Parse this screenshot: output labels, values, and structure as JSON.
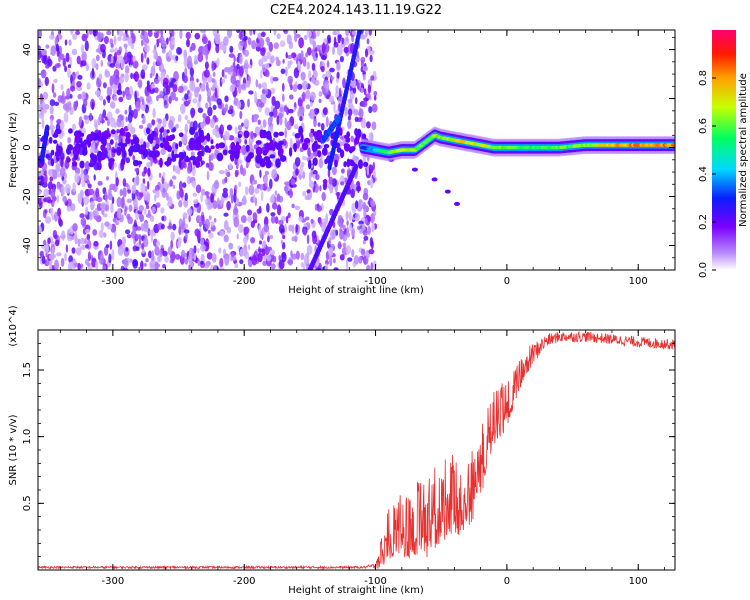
{
  "title": "C2E4.2024.143.11.19.G22",
  "chart_data": [
    {
      "type": "heatmap",
      "description_role": "spectrogram",
      "xlabel": "Height of straight line (km)",
      "ylabel": "Frequency (Hz)",
      "xlim": [
        -357,
        128
      ],
      "ylim": [
        -50,
        48
      ],
      "xticks": [
        -300,
        -200,
        -100,
        0,
        100
      ],
      "xtick_labels": [
        "-300",
        "-200",
        "-100",
        "0",
        "100"
      ],
      "yticks": [
        -40,
        -20,
        0,
        20,
        40
      ],
      "ytick_labels": [
        "-40",
        "-20",
        "0",
        "20",
        "40"
      ],
      "colorbar": {
        "label": "Normalized spectral amplitude",
        "range": [
          0,
          1
        ],
        "ticks": [
          0.0,
          0.2,
          0.4,
          0.6,
          0.8
        ],
        "tick_labels": [
          "0.0",
          "0.2",
          "0.4",
          "0.6",
          "0.8"
        ]
      },
      "noise_region": {
        "x_from": -357,
        "x_to": -100,
        "y_from": -50,
        "y_to": 48,
        "amplitude": 0.15
      },
      "streaks": [
        {
          "x_from": -135,
          "x_to": -112,
          "y_from": -8,
          "y_to": 48,
          "amplitude": 0.25
        },
        {
          "x_from": -150,
          "x_to": -115,
          "y_from": -50,
          "y_to": -8,
          "amplitude": 0.2
        },
        {
          "x_from": -140,
          "x_to": -128,
          "y_from": 3,
          "y_to": 12,
          "amplitude": 0.3
        },
        {
          "x_from": -354,
          "x_to": -350,
          "y_from": -5,
          "y_to": 8,
          "amplitude": 0.25
        }
      ],
      "signal_trace": {
        "x": [
          -110,
          -100,
          -90,
          -80,
          -70,
          -60,
          -55,
          -50,
          -40,
          -30,
          -20,
          -10,
          0,
          20,
          40,
          60,
          80,
          100,
          128
        ],
        "freq": [
          0,
          -1,
          -2,
          -1,
          -1,
          3,
          5,
          4,
          3,
          2,
          1,
          0,
          0,
          0,
          0,
          1,
          1,
          1,
          1
        ],
        "amplitude": [
          0.25,
          0.45,
          0.6,
          0.75,
          0.65,
          0.55,
          0.7,
          0.6,
          0.7,
          0.75,
          0.7,
          0.65,
          0.6,
          0.55,
          0.6,
          0.65,
          0.75,
          0.85,
          0.8
        ]
      },
      "weak_trace": {
        "x": [
          -88,
          -70,
          -55,
          -45,
          -38
        ],
        "freq": [
          -5,
          -9,
          -13,
          -18,
          -23
        ],
        "amplitude": 0.2
      }
    },
    {
      "type": "line",
      "series_name": "SNR",
      "color": "#e83030",
      "xlabel": "Height of straight line (km)",
      "ylabel": "SNR (10 * v/v)",
      "scale_label": "(x10^4)",
      "xlim": [
        -357,
        128
      ],
      "ylim": [
        0,
        1.8
      ],
      "xticks": [
        -300,
        -200,
        -100,
        0,
        100
      ],
      "xtick_labels": [
        "-300",
        "-200",
        "-100",
        "0",
        "100"
      ],
      "yticks": [
        0.5,
        1.0,
        1.5
      ],
      "ytick_labels": [
        "0.5",
        "1.0",
        "1.5"
      ],
      "x": [
        -357,
        -300,
        -200,
        -110,
        -100,
        -95,
        -90,
        -80,
        -70,
        -60,
        -50,
        -40,
        -30,
        -25,
        -20,
        -15,
        -10,
        -5,
        0,
        10,
        20,
        30,
        40,
        60,
        80,
        100,
        128
      ],
      "y": [
        0.02,
        0.02,
        0.02,
        0.02,
        0.03,
        0.2,
        0.35,
        0.4,
        0.45,
        0.5,
        0.6,
        0.65,
        0.7,
        0.75,
        0.85,
        1.1,
        1.2,
        1.25,
        1.3,
        1.5,
        1.62,
        1.72,
        1.75,
        1.75,
        1.73,
        1.71,
        1.69
      ],
      "noise_amp": [
        0.008,
        0.008,
        0.008,
        0.008,
        0.02,
        0.2,
        0.3,
        0.35,
        0.4,
        0.45,
        0.45,
        0.45,
        0.45,
        0.4,
        0.4,
        0.35,
        0.3,
        0.3,
        0.25,
        0.15,
        0.08,
        0.05,
        0.04,
        0.04,
        0.04,
        0.04,
        0.04
      ]
    }
  ]
}
